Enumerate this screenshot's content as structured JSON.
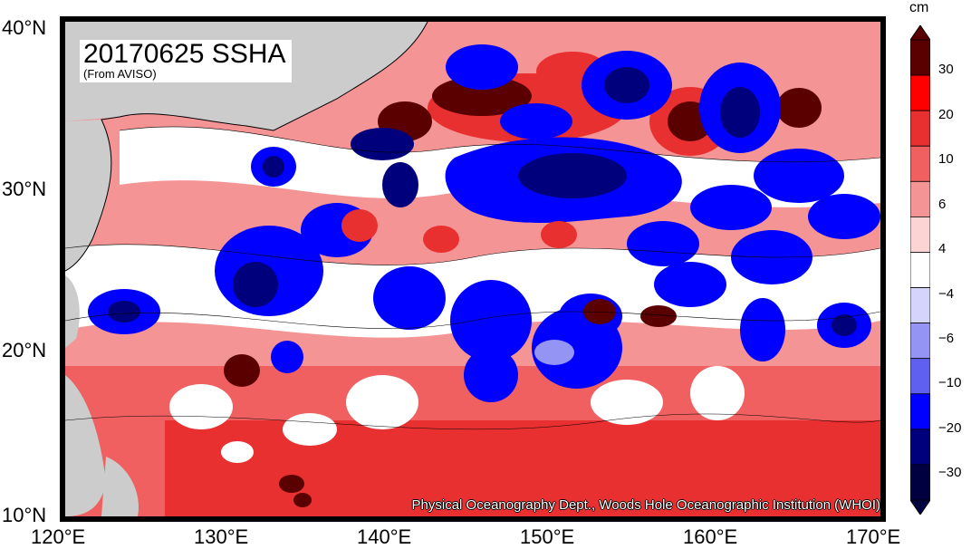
{
  "title": "20170625 SSHA",
  "subtitle": "(From AVISO)",
  "credit": "Physical Oceanography Dept., Woods Hole Oceanographic Institution (WHOI)",
  "lat_labels": [
    "40°N",
    "30°N",
    "20°N",
    "10°N"
  ],
  "lon_labels": [
    "120°E",
    "130°E",
    "140°E",
    "150°E",
    "160°E",
    "170°E"
  ],
  "colorbar": {
    "unit": "cm",
    "labels": [
      "30",
      "20",
      "10",
      "6",
      "4",
      "−4",
      "−6",
      "−10",
      "−20",
      "−30"
    ],
    "colors": [
      "#5a0000",
      "#ff0000",
      "#e83030",
      "#f06060",
      "#f49494",
      "#fcd4d4",
      "#ffffff",
      "#d4d4fc",
      "#9494f4",
      "#6060f0",
      "#0000ff",
      "#00007c",
      "#000040"
    ]
  },
  "colors": {
    "land": "#cccccc",
    "ocean_neutral": "#ffffff"
  }
}
